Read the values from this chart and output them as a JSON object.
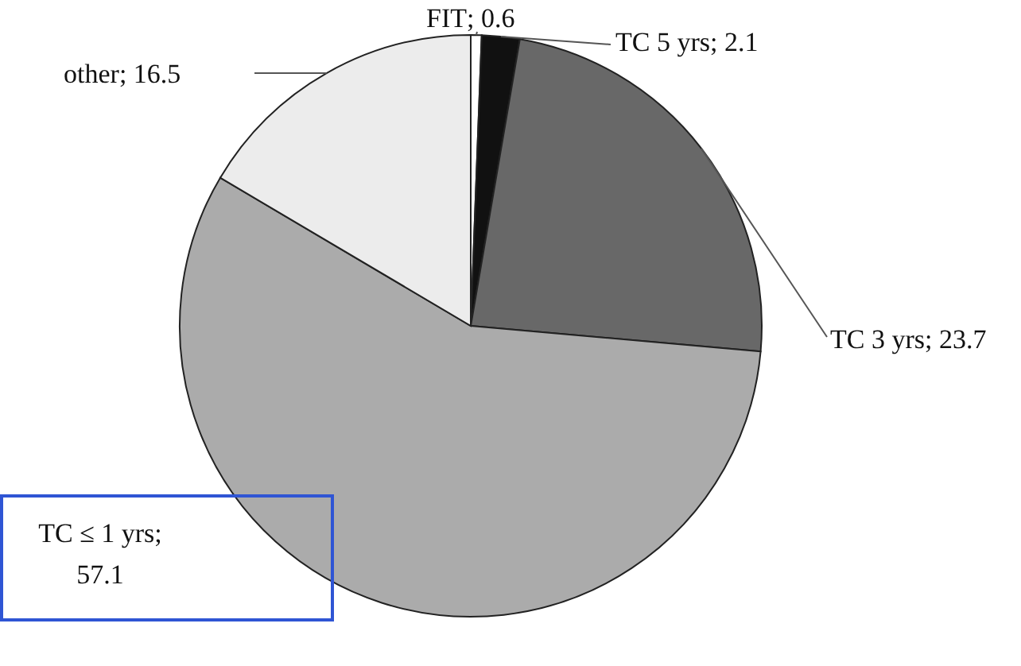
{
  "chart_data": {
    "type": "pie",
    "categories": [
      "FIT",
      "TC 5 yrs",
      "TC 3 yrs",
      "TC ≤ 1 yrs",
      "other"
    ],
    "values": [
      0.6,
      2.1,
      23.7,
      57.1,
      16.5
    ],
    "colors": [
      "#ffffff",
      "#111111",
      "#686868",
      "#ababab",
      "#ececec"
    ],
    "value_labels": [
      "; 0.6",
      "; 2.1",
      "; 23.7",
      ";\n57.1",
      "; 16.5"
    ]
  }
}
